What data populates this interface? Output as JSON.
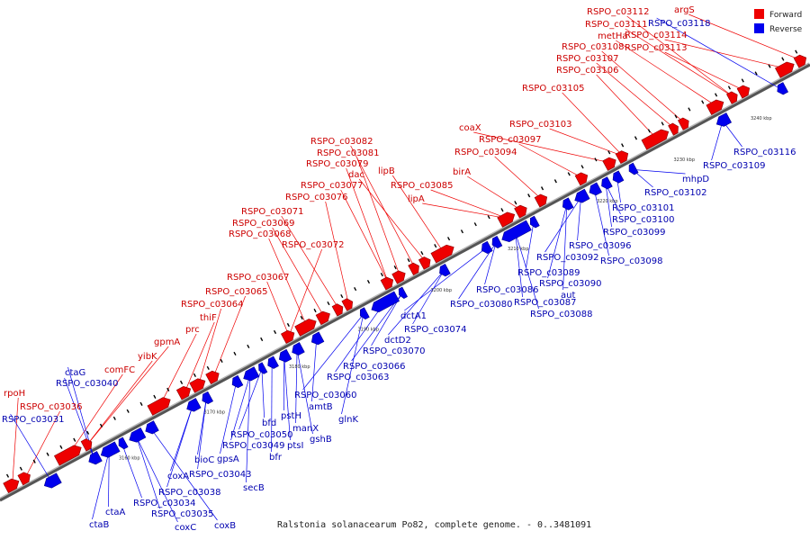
{
  "caption": "Ralstonia solanacearum Po82, complete genome. - 0..3481091",
  "legend": {
    "forward_label": "Forward",
    "reverse_label": "Reverse",
    "forward_color": "#ee0000",
    "reverse_color": "#0000ee"
  },
  "ticks": [
    "3160 kbp",
    "3170 kbp",
    "3180 kbp",
    "3190 kbp",
    "3200 kbp",
    "3210 kbp",
    "3220 kbp",
    "3230 kbp",
    "3240 kbp"
  ],
  "forward_genes": [
    "rpoH",
    "RSPO_c03036",
    "comFC",
    "yibK",
    "gpmA",
    "prc",
    "thiF",
    "RSPO_c03064",
    "RSPO_c03065",
    "RSPO_c03067",
    "RSPO_c03072",
    "RSPO_c03068",
    "RSPO_c03069",
    "RSPO_c03071",
    "RSPO_c03076",
    "RSPO_c03077",
    "RSPO_c03079",
    "RSPO_c03081",
    "RSPO_c03082",
    "dac",
    "lipB",
    "RSPO_c03085",
    "lipA",
    "birA",
    "RSPO_c03094",
    "RSPO_c03097",
    "coaX",
    "RSPO_c03103",
    "RSPO_c03105",
    "RSPO_c03106",
    "RSPO_c03107",
    "RSPO_c03108",
    "metHa",
    "RSPO_c03111",
    "RSPO_c03112",
    "RSPO_c03113",
    "RSPO_c03114",
    "argS"
  ],
  "reverse_genes": [
    "RSPO_c03031",
    "ctaG",
    "RSPO_c03040",
    "ctaB",
    "ctaA",
    "RSPO_c03034",
    "coxC",
    "RSPO_c03035",
    "coxB",
    "RSPO_c03038",
    "coxA",
    "RSPO_c03043",
    "bioC",
    "gpsA",
    "secB",
    "RSPO_c03049",
    "RSPO_c03050",
    "bfd",
    "bfr",
    "ptsI",
    "pstH",
    "manX",
    "gshB",
    "amtB",
    "glnK",
    "RSPO_c03060",
    "RSPO_c03063",
    "RSPO_c03066",
    "RSPO_c03070",
    "dctD2",
    "RSPO_c03074",
    "dctA1",
    "RSPO_c03080",
    "RSPO_c03086",
    "RSPO_c03087",
    "RSPO_c03088",
    "RSPO_c03089",
    "RSPO_c03090",
    "aut",
    "RSPO_c03092",
    "RSPO_c03096",
    "RSPO_c03098",
    "RSPO_c03099",
    "RSPO_c03100",
    "RSPO_c03101",
    "RSPO_c03102",
    "mhpD",
    "RSPO_c03109",
    "RSPO_c03116",
    "RSPO_c03118"
  ]
}
